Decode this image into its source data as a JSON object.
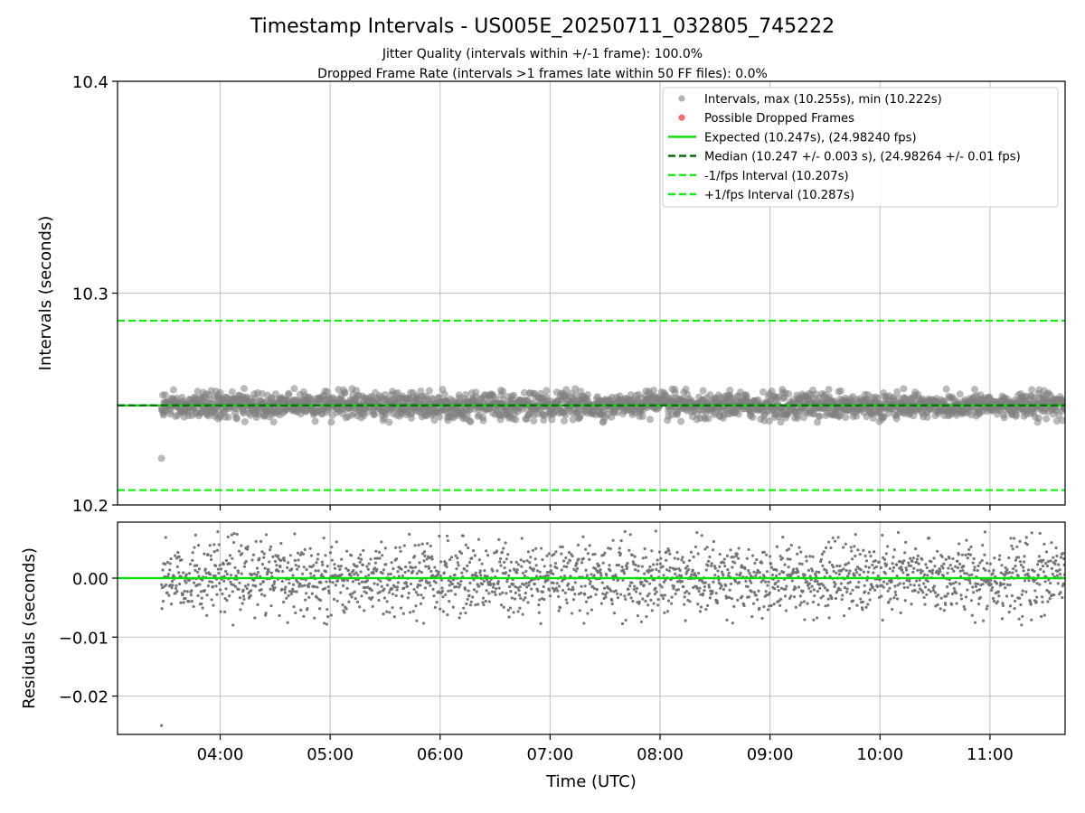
{
  "figure": {
    "title": "Timestamp Intervals - US005E_20250711_032805_745222",
    "subtitle_line1": "Jitter Quality (intervals within +/-1 frame): 100.0%",
    "subtitle_line2": "Dropped Frame Rate (intervals >1 frames late within 50 FF files): 0.0%",
    "xlabel": "Time (UTC)"
  },
  "chart_data": [
    {
      "type": "scatter",
      "panel": "intervals",
      "ylabel": "Intervals (seconds)",
      "xlim": [
        "03:04",
        "11:41"
      ],
      "ylim": [
        10.2,
        10.4
      ],
      "yticks": [
        10.2,
        10.3,
        10.4
      ],
      "ytick_labels": [
        "10.2",
        "10.3",
        "10.4"
      ],
      "xticks": [
        "04:00",
        "05:00",
        "06:00",
        "07:00",
        "08:00",
        "09:00",
        "10:00",
        "11:00"
      ],
      "grid": true,
      "legend_position": "top-right",
      "series": [
        {
          "name": "Intervals, max (10.255s), min (10.222s)",
          "kind": "points",
          "color": "#808080",
          "x_start": "03:28",
          "x_end": "11:41",
          "center": 10.247,
          "spread": 0.003,
          "max": 10.255,
          "min": 10.222,
          "outliers": [
            {
              "x": "03:28",
              "y": 10.222
            }
          ]
        },
        {
          "name": "Possible Dropped Frames",
          "kind": "points",
          "color": "#ef5350",
          "values": []
        },
        {
          "name": "Expected (10.247s), (24.98240 fps)",
          "kind": "hline",
          "y": 10.247,
          "color": "#00e000",
          "style": "solid"
        },
        {
          "name": "Median (10.247 +/- 0.003 s), (24.98264 +/- 0.01 fps)",
          "kind": "hline",
          "y": 10.247,
          "color": "#006400",
          "style": "dashed"
        },
        {
          "name": "-1/fps Interval (10.207s)",
          "kind": "hline",
          "y": 10.207,
          "color": "#11ee11",
          "style": "dashed"
        },
        {
          "name": "+1/fps Interval (10.287s)",
          "kind": "hline",
          "y": 10.287,
          "color": "#11ee11",
          "style": "dashed"
        }
      ]
    },
    {
      "type": "scatter",
      "panel": "residuals",
      "ylabel": "Residuals (seconds)",
      "xlim": [
        "03:04",
        "11:41"
      ],
      "ylim": [
        -0.0265,
        0.0095
      ],
      "yticks": [
        -0.02,
        -0.01,
        0.0
      ],
      "ytick_labels": [
        "−0.02",
        "−0.01",
        "0.00"
      ],
      "xticks": [
        "04:00",
        "05:00",
        "06:00",
        "07:00",
        "08:00",
        "09:00",
        "10:00",
        "11:00"
      ],
      "xtick_labels": [
        "04:00",
        "05:00",
        "06:00",
        "07:00",
        "08:00",
        "09:00",
        "10:00",
        "11:00"
      ],
      "grid": true,
      "series": [
        {
          "kind": "points",
          "color": "#707070",
          "x_start": "03:28",
          "x_end": "11:41",
          "center": 0.0,
          "spread": 0.003,
          "max": 0.008,
          "min": -0.025,
          "outliers": [
            {
              "x": "03:28",
              "y": -0.025
            }
          ]
        },
        {
          "kind": "hline",
          "y": 0.0,
          "color": "#00e000",
          "style": "solid"
        }
      ]
    }
  ]
}
